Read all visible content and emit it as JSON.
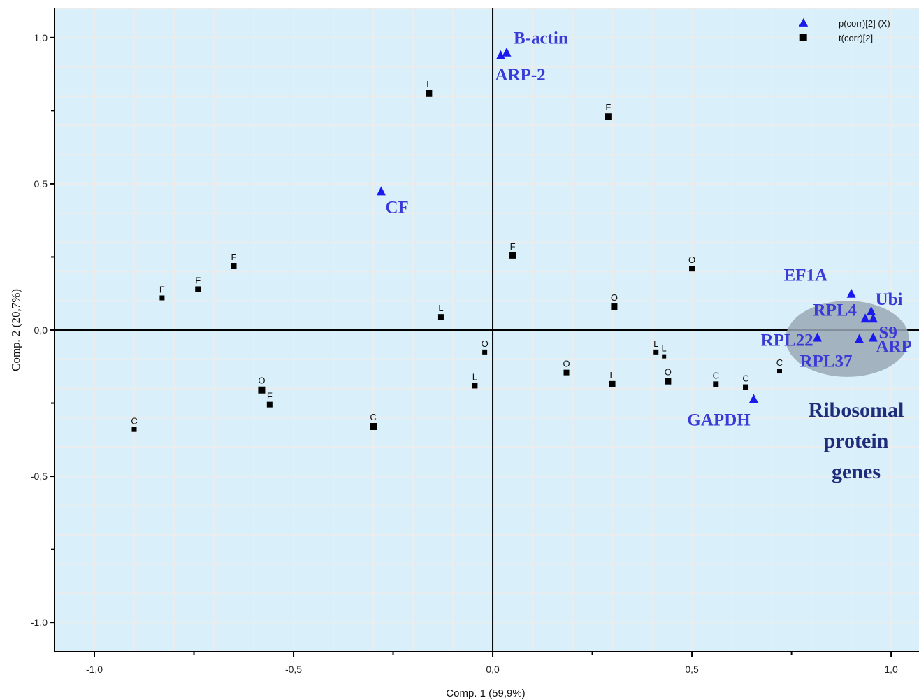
{
  "chart_data": {
    "type": "scatter",
    "xlabel": "Comp. 1 (59,9%)",
    "ylabel": "Comp. 2 (20,7%)",
    "xlim": [
      -1.1,
      1.07
    ],
    "ylim": [
      -1.1,
      1.1
    ],
    "xticks": [
      "-1,0",
      "-0,5",
      "0,0",
      "0,5",
      "1,0"
    ],
    "yticks": [
      "1,0",
      "0,5",
      "0,0",
      "-0,5",
      "-1,0"
    ],
    "grid": true,
    "legend_position": "top-right",
    "background_color": "#d9f0fb",
    "series": [
      {
        "name": "p(corr)[2] (X)",
        "marker": "triangle",
        "color": "#1a1aee",
        "points": [
          {
            "x": 0.02,
            "y": 0.94,
            "label": "ARP-2"
          },
          {
            "x": 0.035,
            "y": 0.95,
            "label": "B-actin"
          },
          {
            "x": -0.28,
            "y": 0.475,
            "label": "CF"
          },
          {
            "x": 0.9,
            "y": 0.125,
            "label": "EF1A"
          },
          {
            "x": 0.95,
            "y": 0.065,
            "label": "Ubi"
          },
          {
            "x": 0.935,
            "y": 0.04,
            "label": "RPL4"
          },
          {
            "x": 0.955,
            "y": 0.04,
            "label": "S9"
          },
          {
            "x": 0.815,
            "y": -0.025,
            "label": "RPL22"
          },
          {
            "x": 0.92,
            "y": -0.03,
            "label": "RPL37"
          },
          {
            "x": 0.955,
            "y": -0.025,
            "label": "ARP"
          },
          {
            "x": 0.655,
            "y": -0.235,
            "label": "GAPDH"
          }
        ]
      },
      {
        "name": "t(corr)[2]",
        "marker": "square",
        "color": "#000000",
        "points": [
          {
            "x": -0.16,
            "y": 0.81,
            "label": "L",
            "size": 9
          },
          {
            "x": 0.29,
            "y": 0.73,
            "label": "F",
            "size": 9
          },
          {
            "x": -0.65,
            "y": 0.22,
            "label": "F",
            "size": 8
          },
          {
            "x": -0.74,
            "y": 0.14,
            "label": "F",
            "size": 8
          },
          {
            "x": -0.83,
            "y": 0.11,
            "label": "F",
            "size": 7
          },
          {
            "x": -0.13,
            "y": 0.045,
            "label": "L",
            "size": 8
          },
          {
            "x": 0.05,
            "y": 0.255,
            "label": "F",
            "size": 9
          },
          {
            "x": 0.5,
            "y": 0.21,
            "label": "O",
            "size": 8
          },
          {
            "x": 0.305,
            "y": 0.08,
            "label": "O",
            "size": 9
          },
          {
            "x": -0.02,
            "y": -0.075,
            "label": "O",
            "size": 7
          },
          {
            "x": -0.045,
            "y": -0.19,
            "label": "L",
            "size": 8
          },
          {
            "x": 0.185,
            "y": -0.145,
            "label": "O",
            "size": 8
          },
          {
            "x": 0.3,
            "y": -0.185,
            "label": "L",
            "size": 9
          },
          {
            "x": 0.41,
            "y": -0.075,
            "label": "L",
            "size": 7
          },
          {
            "x": 0.43,
            "y": -0.09,
            "label": "L",
            "size": 6
          },
          {
            "x": 0.44,
            "y": -0.175,
            "label": "O",
            "size": 9
          },
          {
            "x": 0.56,
            "y": -0.185,
            "label": "C",
            "size": 8
          },
          {
            "x": 0.635,
            "y": -0.195,
            "label": "C",
            "size": 8
          },
          {
            "x": 0.72,
            "y": -0.14,
            "label": "C",
            "size": 7
          },
          {
            "x": -0.58,
            "y": -0.205,
            "label": "O",
            "size": 10
          },
          {
            "x": -0.56,
            "y": -0.255,
            "label": "F",
            "size": 8
          },
          {
            "x": -0.3,
            "y": -0.33,
            "label": "C",
            "size": 10
          },
          {
            "x": -0.9,
            "y": -0.34,
            "label": "C",
            "size": 7
          }
        ]
      }
    ],
    "annotations": [
      {
        "text": [
          "Ribosomal",
          "protein",
          "genes"
        ],
        "color": "#1f2c7a"
      }
    ]
  },
  "legend_ref_points": [
    {
      "series": 0,
      "x": 0.78,
      "y": 1.05
    },
    {
      "series": 1,
      "x": 0.78,
      "y": 1.0
    }
  ],
  "ellipse_region": {
    "cx": 0.89,
    "cy": -0.03,
    "rx": 0.155,
    "ry": 0.13,
    "color": "#9aa8b5"
  }
}
